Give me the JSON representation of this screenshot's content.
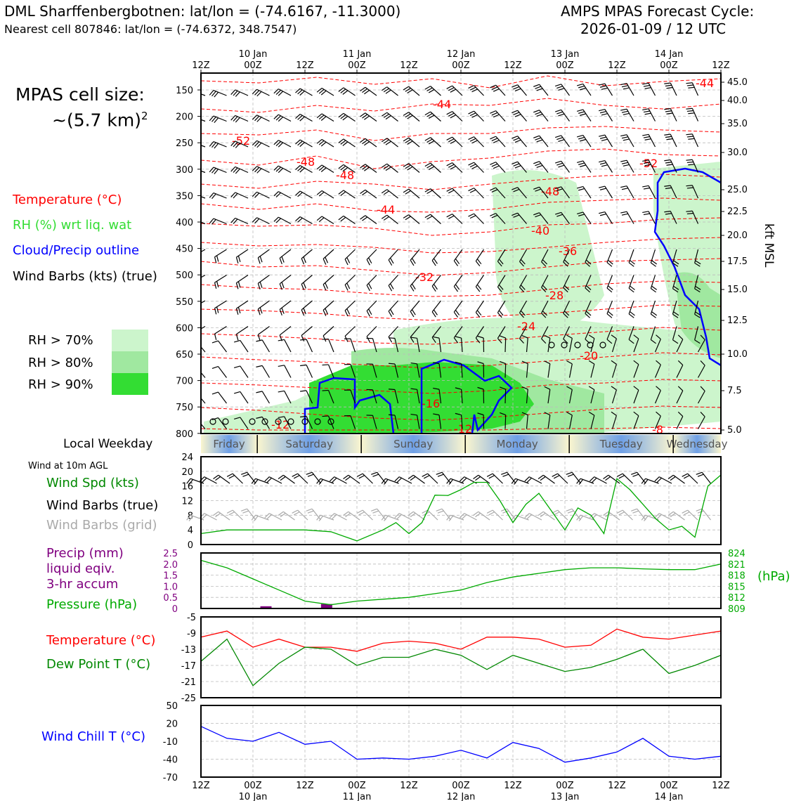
{
  "header": {
    "station_line": "DML Sharffenbergbotnen: lat/lon = (-74.6167, -11.3000)",
    "cell_line": "Nearest cell 807846: lat/lon = (-74.6372, 348.7547)",
    "cycle_label": "AMPS MPAS Forecast Cycle:",
    "cycle_value": "2026-01-09 / 12 UTC"
  },
  "cell_size": {
    "line1": "MPAS cell size:",
    "line2": "~(5.7 km)"
  },
  "legend": {
    "temperature": "Temperature (°C)",
    "rh": "RH (%) wrt liq. wat",
    "cloud": "Cloud/Precip outline",
    "wind": "Wind Barbs (kts) (true)",
    "rh70": "RH > 70%",
    "rh80": "RH > 80%",
    "rh90": "RH > 90%"
  },
  "colors": {
    "temperature": "#ff0000",
    "rh": "#33dd33",
    "cloud": "#0000ff",
    "rh70": "#ccf5cc",
    "rh80": "#a0e8a0",
    "rh90": "#33dd33",
    "pressure": "#00aa00",
    "precip": "#800080",
    "dewpoint": "#008800",
    "windchill": "#0000ff",
    "wind_grid": "#aaaaaa"
  },
  "time_axis": {
    "ticks": [
      "12Z",
      "00Z",
      "12Z",
      "00Z",
      "12Z",
      "00Z",
      "12Z",
      "00Z",
      "12Z",
      "00Z",
      "12Z"
    ],
    "days": [
      "10 Jan",
      "11 Jan",
      "12 Jan",
      "13 Jan",
      "14 Jan"
    ]
  },
  "weekday": {
    "label": "Local Weekday",
    "days": [
      "Friday",
      "Saturday",
      "Sunday",
      "Monday",
      "Tuesday",
      "Wednesday"
    ]
  },
  "panels": {
    "wind10m": {
      "title": "Wind at 10m AGL",
      "spd": "Wind Spd (kts)",
      "barbs_true": "Wind Barbs (true)",
      "barbs_grid": "Wind Barbs (grid)"
    },
    "precip": {
      "line1": "Precip (mm)",
      "line2": "liquid eqiv.",
      "line3": "3-hr accum",
      "pressure": "Pressure (hPa)",
      "hpa_unit": "(hPa)"
    },
    "temp": {
      "temp": "Temperature (°C)",
      "dew": "Dew Point T (°C)"
    },
    "windchill": {
      "label": "Wind Chill T (°C)"
    },
    "profile": {
      "right_axis_label": "kft MSL"
    }
  },
  "chart_data": [
    {
      "type": "line",
      "name": "profile",
      "left_ticks": [
        "150",
        "200",
        "250",
        "300",
        "350",
        "400",
        "450",
        "500",
        "550",
        "600",
        "650",
        "700",
        "750",
        "800"
      ],
      "right_ticks": [
        "45.0",
        "40.0",
        "35.0",
        "30.0",
        "25.0",
        "22.5",
        "20.0",
        "17.5",
        "15.0",
        "12.5",
        "10.0",
        "7.5",
        "5.0"
      ],
      "temp_labels": [
        "-44",
        "-44",
        "-52",
        "-48",
        "-48",
        "-52",
        "-44",
        "-48",
        "-40",
        "-36",
        "-32",
        "-28",
        "-24",
        "-20",
        "-16",
        "-12",
        "-12",
        "-8"
      ]
    },
    {
      "type": "line",
      "name": "wind10m",
      "yticks": [
        "0",
        "4",
        "8",
        "12",
        "16",
        "20",
        "24"
      ],
      "ylim": [
        0,
        24
      ],
      "x_hours": [
        0,
        6,
        12,
        18,
        24,
        30,
        36,
        42,
        45,
        48,
        51,
        54,
        57,
        60,
        63,
        66,
        69,
        72,
        75,
        78,
        81,
        84,
        87,
        90,
        93,
        96,
        99,
        102,
        105,
        108,
        111,
        114,
        117,
        120
      ],
      "speed": [
        3,
        4,
        4,
        4,
        4,
        3.5,
        1,
        4,
        6,
        3,
        6,
        13.5,
        13.4,
        15,
        17,
        17,
        12,
        6,
        11,
        14,
        9,
        4,
        10,
        8,
        3,
        18,
        15,
        11,
        7,
        4,
        5,
        2,
        16,
        19
      ]
    },
    {
      "type": "line",
      "name": "pressure",
      "left_ticks": [
        "0",
        "0.5",
        "1.0",
        "1.5",
        "2.0",
        "2.5"
      ],
      "right_ticks": [
        "809",
        "812",
        "815",
        "818",
        "821",
        "824"
      ],
      "x_hours": [
        0,
        6,
        12,
        18,
        24,
        30,
        36,
        42,
        48,
        54,
        60,
        66,
        72,
        78,
        84,
        90,
        96,
        102,
        108,
        114,
        120
      ],
      "pressure": [
        822,
        820,
        817,
        814,
        811,
        810,
        811,
        811.5,
        812,
        813,
        814,
        816,
        817.5,
        818.5,
        819.5,
        820,
        820,
        819.7,
        819.5,
        819.5,
        821
      ],
      "precip": [
        {
          "x": 15,
          "v": 0.1
        },
        {
          "x": 29,
          "v": 0.2
        }
      ]
    },
    {
      "type": "line",
      "name": "temp_dew",
      "yticks": [
        "-5",
        "-9",
        "-13",
        "-17",
        "-21",
        "-25"
      ],
      "ylim": [
        -25,
        -5
      ],
      "x_hours": [
        0,
        6,
        12,
        18,
        24,
        30,
        36,
        42,
        48,
        54,
        60,
        66,
        72,
        78,
        84,
        90,
        96,
        102,
        108,
        114,
        120
      ],
      "temperature": [
        -10,
        -8.5,
        -12.5,
        -10.5,
        -12.5,
        -12.5,
        -13.5,
        -11.5,
        -11,
        -11.5,
        -13,
        -10,
        -10,
        -10.5,
        -12.5,
        -12,
        -8,
        -10,
        -10.5,
        -9.5,
        -8.5
      ],
      "dewpoint": [
        -16,
        -10.5,
        -22,
        -16.5,
        -12.5,
        -13,
        -17,
        -15,
        -15,
        -13,
        -14.5,
        -18,
        -14.5,
        -16.5,
        -18.5,
        -17.5,
        -15.5,
        -13,
        -19,
        -17,
        -14.5
      ]
    },
    {
      "type": "line",
      "name": "windchill",
      "yticks": [
        "50",
        "20",
        "-10",
        "-40",
        "-70"
      ],
      "ylim": [
        -70,
        50
      ],
      "x_hours": [
        0,
        6,
        12,
        18,
        24,
        30,
        36,
        42,
        48,
        54,
        60,
        66,
        72,
        78,
        84,
        90,
        96,
        102,
        108,
        114,
        120
      ],
      "windchill": [
        15,
        -5,
        -10,
        5,
        -15,
        -10,
        -40,
        -38,
        -40,
        -35,
        -25,
        -38,
        -12,
        -22,
        -45,
        -38,
        -28,
        -5,
        -35,
        -40,
        -35
      ]
    }
  ]
}
